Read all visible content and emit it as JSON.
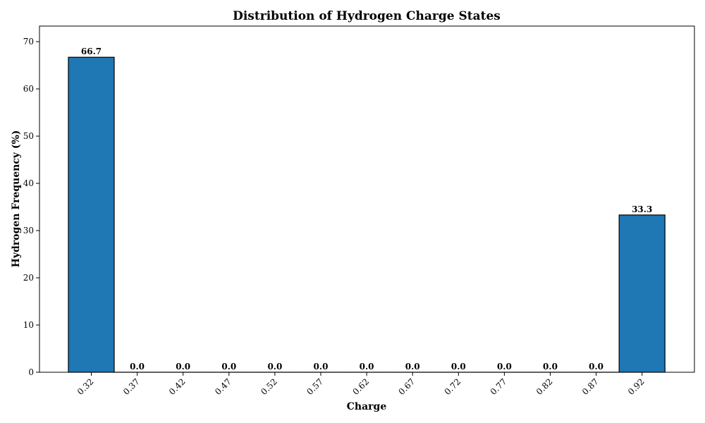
{
  "chart_data": {
    "type": "bar",
    "title": "Distribution of Hydrogen Charge States",
    "xlabel": "Charge",
    "ylabel": "Hydrogen Frequency (%)",
    "categories": [
      "0.32",
      "0.37",
      "0.42",
      "0.47",
      "0.52",
      "0.57",
      "0.62",
      "0.67",
      "0.72",
      "0.77",
      "0.82",
      "0.87",
      "0.92"
    ],
    "values": [
      66.7,
      0.0,
      0.0,
      0.0,
      0.0,
      0.0,
      0.0,
      0.0,
      0.0,
      0.0,
      0.0,
      0.0,
      33.3
    ],
    "data_labels": [
      "66.7",
      "0.0",
      "0.0",
      "0.0",
      "0.0",
      "0.0",
      "0.0",
      "0.0",
      "0.0",
      "0.0",
      "0.0",
      "0.0",
      "33.3"
    ],
    "ylim": [
      0,
      73.3
    ],
    "yticks": [
      0,
      10,
      20,
      30,
      40,
      50,
      60,
      70
    ],
    "grid": false,
    "bar_color": "#1f77b4",
    "bar_edge_color": "#000000"
  }
}
